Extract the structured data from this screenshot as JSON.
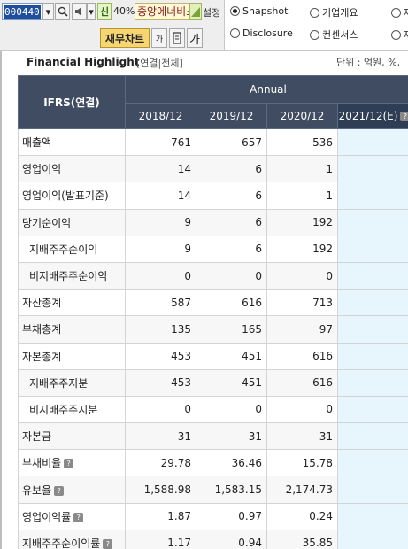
{
  "toolbar": {
    "stock_code": "000440",
    "zoom": "40%",
    "company": "중앙에너비스",
    "sin_label": "신",
    "setting_label": "설정",
    "fin_chart_label": "재무차트",
    "ga_label": "가",
    "ga2_label": "가"
  },
  "views": {
    "snapshot": "Snapshot",
    "company_overview": "기업개요",
    "disclosure": "Disclosure",
    "consensus": "컨센서스",
    "more1": "재",
    "more2": "재",
    "selected": "Snapshot"
  },
  "highlight": {
    "title": "Financial Highlight",
    "filter": "[연결|전체]",
    "unit": "단위 : 억원, %,"
  },
  "table": {
    "corner_header": "IFRS(연결)",
    "group_header": "Annual",
    "columns": [
      "2018/12",
      "2019/12",
      "2020/12",
      "2021/12(E)"
    ],
    "rows": [
      {
        "label": "매출액",
        "values": [
          "761",
          "657",
          "536",
          ""
        ],
        "indent": false,
        "info": false
      },
      {
        "label": "영업이익",
        "values": [
          "14",
          "6",
          "1",
          ""
        ],
        "indent": false,
        "info": false
      },
      {
        "label": "영업이익(발표기준)",
        "values": [
          "14",
          "6",
          "1",
          ""
        ],
        "indent": false,
        "info": false
      },
      {
        "label": "당기순이익",
        "values": [
          "9",
          "6",
          "192",
          ""
        ],
        "indent": false,
        "info": false
      },
      {
        "label": "지배주주순이익",
        "values": [
          "9",
          "6",
          "192",
          ""
        ],
        "indent": true,
        "info": false
      },
      {
        "label": "비지배주주순이익",
        "values": [
          "0",
          "0",
          "0",
          ""
        ],
        "indent": true,
        "info": false
      },
      {
        "label": "자산총계",
        "values": [
          "587",
          "616",
          "713",
          ""
        ],
        "indent": false,
        "info": false
      },
      {
        "label": "부채총계",
        "values": [
          "135",
          "165",
          "97",
          ""
        ],
        "indent": false,
        "info": false
      },
      {
        "label": "자본총계",
        "values": [
          "453",
          "451",
          "616",
          ""
        ],
        "indent": false,
        "info": false
      },
      {
        "label": "지배주주지분",
        "values": [
          "453",
          "451",
          "616",
          ""
        ],
        "indent": true,
        "info": false
      },
      {
        "label": "비지배주주지분",
        "values": [
          "0",
          "0",
          "0",
          ""
        ],
        "indent": true,
        "info": false
      },
      {
        "label": "자본금",
        "values": [
          "31",
          "31",
          "31",
          ""
        ],
        "indent": false,
        "info": false
      },
      {
        "label": "부채비율",
        "values": [
          "29.78",
          "36.46",
          "15.78",
          ""
        ],
        "indent": false,
        "info": true
      },
      {
        "label": "유보율",
        "values": [
          "1,588.98",
          "1,583.15",
          "2,174.73",
          ""
        ],
        "indent": false,
        "info": true
      },
      {
        "label": "영업이익률",
        "values": [
          "1.87",
          "0.97",
          "0.24",
          ""
        ],
        "indent": false,
        "info": true
      },
      {
        "label": "지배주주순이익률",
        "values": [
          "1.17",
          "0.94",
          "35.85",
          ""
        ],
        "indent": false,
        "info": true
      }
    ]
  }
}
